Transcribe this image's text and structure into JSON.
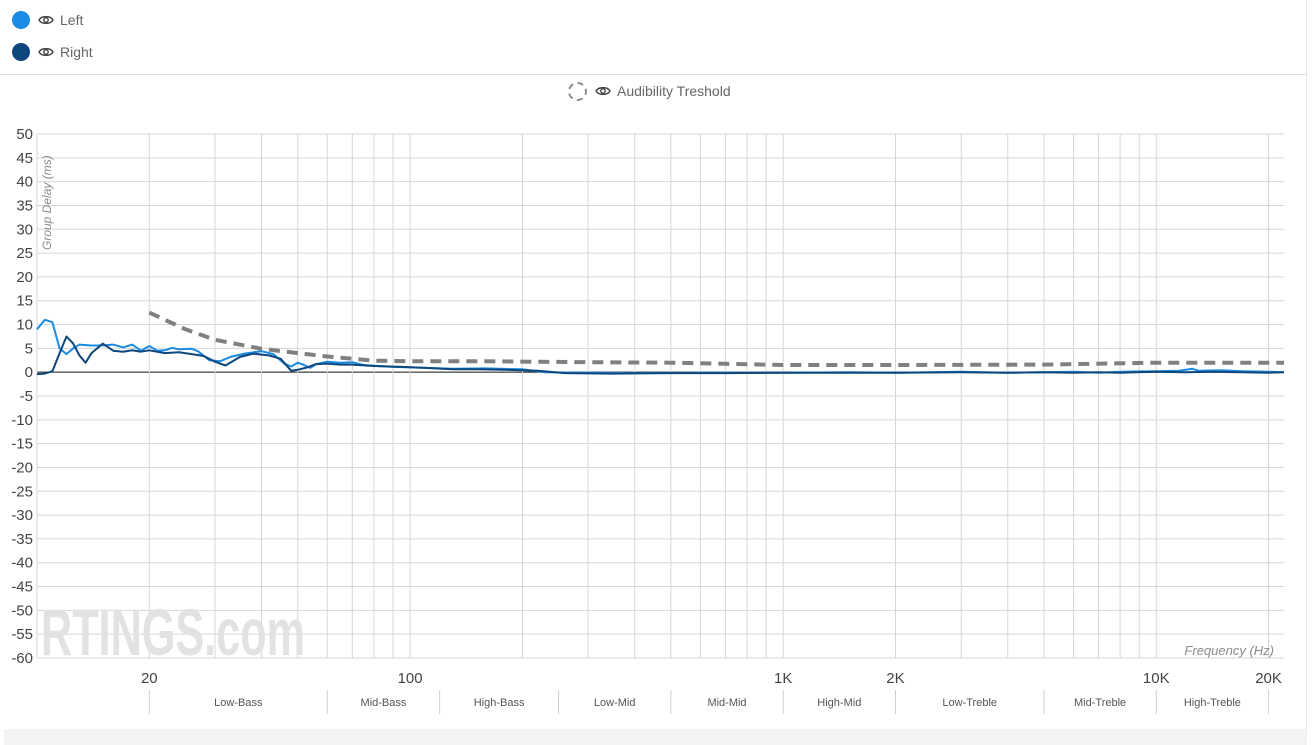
{
  "legend": [
    {
      "key": "left",
      "label": "Left",
      "color": "#1b8ce3"
    },
    {
      "key": "right",
      "label": "Right",
      "color": "#0d477c"
    },
    {
      "key": "threshold",
      "label": "Audibility Treshold",
      "color": "#808080"
    }
  ],
  "icons": {
    "visibility": "eye-icon"
  },
  "watermark": "RTINGS.com",
  "chart_data": {
    "type": "line",
    "xscale": "log",
    "xlim": [
      10,
      22000
    ],
    "ylim": [
      -60,
      50
    ],
    "ylabel": "Group Delay (ms)",
    "xlabel": "Frequency (Hz)",
    "yticks": [
      50,
      45,
      40,
      35,
      30,
      25,
      20,
      15,
      10,
      5,
      0,
      -5,
      -10,
      -15,
      -20,
      -25,
      -30,
      -35,
      -40,
      -45,
      -50,
      -55,
      -60
    ],
    "xticks": [
      {
        "value": 20,
        "label": "20"
      },
      {
        "value": 100,
        "label": "100"
      },
      {
        "value": 1000,
        "label": "1K"
      },
      {
        "value": 2000,
        "label": "2K"
      },
      {
        "value": 10000,
        "label": "10K"
      },
      {
        "value": 20000,
        "label": "20K"
      }
    ],
    "grid": true,
    "legend_position": "top-left",
    "bands": [
      {
        "label": "Low-Bass",
        "from": 20,
        "to": 60
      },
      {
        "label": "Mid-Bass",
        "from": 60,
        "to": 120
      },
      {
        "label": "High-Bass",
        "from": 120,
        "to": 250
      },
      {
        "label": "Low-Mid",
        "from": 250,
        "to": 500
      },
      {
        "label": "Mid-Mid",
        "from": 500,
        "to": 1000
      },
      {
        "label": "High-Mid",
        "from": 1000,
        "to": 2000
      },
      {
        "label": "Low-Treble",
        "from": 2000,
        "to": 5000
      },
      {
        "label": "Mid-Treble",
        "from": 5000,
        "to": 10000
      },
      {
        "label": "High-Treble",
        "from": 10000,
        "to": 20000
      }
    ],
    "series": [
      {
        "name": "Left",
        "color": "#1b8ce3",
        "points": [
          [
            10,
            9
          ],
          [
            10.5,
            11
          ],
          [
            11,
            10.5
          ],
          [
            11.5,
            5
          ],
          [
            12,
            3.8
          ],
          [
            12.5,
            5
          ],
          [
            13,
            5.8
          ],
          [
            14,
            5.6
          ],
          [
            15,
            5.6
          ],
          [
            16,
            5.8
          ],
          [
            17,
            5.2
          ],
          [
            18,
            5.8
          ],
          [
            19,
            4.5
          ],
          [
            20,
            5.5
          ],
          [
            21,
            4.5
          ],
          [
            22,
            4.6
          ],
          [
            23,
            5.1
          ],
          [
            24,
            4.8
          ],
          [
            26,
            4.9
          ],
          [
            27,
            4.4
          ],
          [
            29,
            2.5
          ],
          [
            31,
            2.3
          ],
          [
            33,
            3.2
          ],
          [
            36,
            3.9
          ],
          [
            40,
            4.4
          ],
          [
            43,
            3.8
          ],
          [
            46,
            1.8
          ],
          [
            48,
            1.2
          ],
          [
            50,
            2.0
          ],
          [
            52,
            1.5
          ],
          [
            54,
            0.9
          ],
          [
            56,
            1.7
          ],
          [
            60,
            2.2
          ],
          [
            65,
            2.0
          ],
          [
            70,
            2.1
          ],
          [
            75,
            1.5
          ],
          [
            90,
            1.1
          ],
          [
            110,
            0.9
          ],
          [
            130,
            0.7
          ],
          [
            160,
            0.8
          ],
          [
            200,
            0.6
          ],
          [
            230,
            0.0
          ],
          [
            300,
            -0.1
          ],
          [
            400,
            -0.2
          ],
          [
            600,
            -0.1
          ],
          [
            800,
            -0.1
          ],
          [
            1000,
            -0.1
          ],
          [
            1500,
            0.0
          ],
          [
            2000,
            -0.1
          ],
          [
            3000,
            0.1
          ],
          [
            4000,
            -0.1
          ],
          [
            5000,
            0.0
          ],
          [
            6000,
            0.1
          ],
          [
            7000,
            -0.1
          ],
          [
            8000,
            0.1
          ],
          [
            10000,
            0.2
          ],
          [
            11500,
            0.3
          ],
          [
            12500,
            0.7
          ],
          [
            13000,
            0.3
          ],
          [
            15000,
            0.4
          ],
          [
            17000,
            0.2
          ],
          [
            20000,
            0.1
          ],
          [
            22000,
            0.0
          ]
        ]
      },
      {
        "name": "Right",
        "color": "#0d477c",
        "points": [
          [
            10,
            -0.4
          ],
          [
            10.5,
            -0.3
          ],
          [
            11,
            0.2
          ],
          [
            11.5,
            4
          ],
          [
            12,
            7.5
          ],
          [
            12.5,
            6
          ],
          [
            13,
            3.5
          ],
          [
            13.5,
            2
          ],
          [
            14,
            4
          ],
          [
            15,
            6
          ],
          [
            16,
            4.5
          ],
          [
            17,
            4.3
          ],
          [
            18,
            4.6
          ],
          [
            19,
            4.3
          ],
          [
            20,
            4.6
          ],
          [
            22,
            4.0
          ],
          [
            24,
            4.2
          ],
          [
            26,
            3.8
          ],
          [
            28,
            3.4
          ],
          [
            30,
            2.2
          ],
          [
            32,
            1.4
          ],
          [
            35,
            3.2
          ],
          [
            38,
            3.9
          ],
          [
            42,
            3.5
          ],
          [
            45,
            2.8
          ],
          [
            48,
            0.3
          ],
          [
            50,
            0.5
          ],
          [
            53,
            1.0
          ],
          [
            56,
            1.7
          ],
          [
            60,
            1.8
          ],
          [
            65,
            1.6
          ],
          [
            70,
            1.6
          ],
          [
            80,
            1.3
          ],
          [
            95,
            1.1
          ],
          [
            110,
            0.9
          ],
          [
            130,
            0.6
          ],
          [
            150,
            0.6
          ],
          [
            180,
            0.5
          ],
          [
            220,
            0.3
          ],
          [
            260,
            -0.2
          ],
          [
            350,
            -0.3
          ],
          [
            500,
            -0.2
          ],
          [
            700,
            -0.2
          ],
          [
            1000,
            -0.1
          ],
          [
            1500,
            -0.1
          ],
          [
            2000,
            -0.1
          ],
          [
            3000,
            0.0
          ],
          [
            4000,
            -0.1
          ],
          [
            5000,
            0.0
          ],
          [
            6000,
            -0.1
          ],
          [
            7000,
            0.0
          ],
          [
            8000,
            -0.1
          ],
          [
            10000,
            0.1
          ],
          [
            12000,
            0.0
          ],
          [
            14000,
            0.1
          ],
          [
            17000,
            0.0
          ],
          [
            20000,
            -0.1
          ],
          [
            22000,
            0.0
          ]
        ]
      },
      {
        "name": "Audibility Treshold",
        "color": "#808080",
        "dashed": true,
        "points": [
          [
            20,
            12.5
          ],
          [
            25,
            9
          ],
          [
            30,
            6.8
          ],
          [
            40,
            4.9
          ],
          [
            50,
            4.0
          ],
          [
            60,
            3.3
          ],
          [
            80,
            2.4
          ],
          [
            100,
            2.3
          ],
          [
            150,
            2.3
          ],
          [
            300,
            2.1
          ],
          [
            500,
            2.0
          ],
          [
            1000,
            1.5
          ],
          [
            2000,
            1.5
          ],
          [
            5000,
            1.6
          ],
          [
            10000,
            2.0
          ],
          [
            22000,
            2.0
          ]
        ]
      }
    ]
  }
}
